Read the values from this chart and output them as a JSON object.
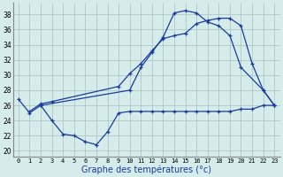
{
  "bg_color": "#d5ecea",
  "grid_color": "#afc8c6",
  "line_color": "#1a3c9c",
  "xlabel": "Graphe des températures (°c)",
  "x_labels": [
    "0",
    "1",
    "2",
    "3",
    "4",
    "5",
    "6",
    "7",
    "8",
    "9",
    "10",
    "11",
    "12",
    "13",
    "14",
    "15",
    "16",
    "17",
    "18",
    "19",
    "20",
    "21",
    "22",
    "23"
  ],
  "y_ticks": [
    20,
    22,
    24,
    26,
    28,
    30,
    32,
    34,
    36,
    38
  ],
  "ylim": [
    19.2,
    39.5
  ],
  "xlim": [
    -0.5,
    23.5
  ],
  "line1_x": [
    0,
    1,
    2,
    3,
    4,
    5,
    6,
    7,
    8,
    9,
    10,
    11,
    12,
    13,
    14,
    15,
    16,
    17,
    18,
    19,
    20,
    21,
    22,
    23
  ],
  "line1_y": [
    26.8,
    25.0,
    26.0,
    24.0,
    22.2,
    22.0,
    21.2,
    20.8,
    22.5,
    25.0,
    25.2,
    25.2,
    25.2,
    25.2,
    25.2,
    25.2,
    25.2,
    25.2,
    25.2,
    25.2,
    25.5,
    25.5,
    26.0,
    26.0
  ],
  "line2_x": [
    2,
    10,
    11,
    12,
    13,
    14,
    15,
    16,
    17,
    18,
    19,
    20,
    22,
    23
  ],
  "line2_y": [
    26.0,
    28.0,
    31.0,
    33.0,
    35.0,
    38.2,
    38.5,
    38.2,
    37.0,
    36.5,
    35.2,
    31.0,
    28.0,
    26.0
  ],
  "line3_x": [
    1,
    2,
    3,
    9,
    10,
    11,
    12,
    13,
    14,
    15,
    16,
    17,
    18,
    19,
    20,
    21,
    22,
    23
  ],
  "line3_y": [
    25.2,
    26.2,
    26.5,
    28.5,
    30.2,
    31.5,
    33.2,
    34.8,
    35.2,
    35.5,
    36.8,
    37.2,
    37.5,
    37.5,
    36.5,
    31.5,
    28.0,
    26.0
  ]
}
